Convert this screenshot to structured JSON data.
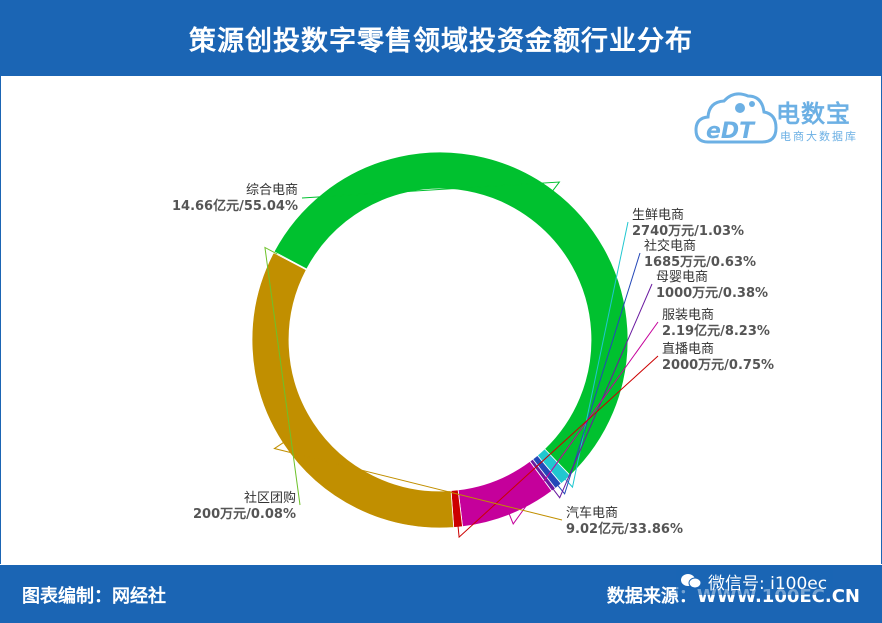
{
  "header": {
    "title": "策源创投数字零售领域投资金额行业分布"
  },
  "logo": {
    "name": "电数宝",
    "mark": "eDT",
    "subtitle": "电商大数据库"
  },
  "footer": {
    "left": "图表编制：网经社",
    "right": "数据来源：WWW.100EC.CN"
  },
  "watermark": {
    "text": "微信号: i100ec"
  },
  "colors": {
    "header_bg": "#1b65b4",
    "logo": "#6cb0e4"
  },
  "chart_data": {
    "type": "pie",
    "style": "donut",
    "title": "策源创投数字零售领域投资金额行业分布",
    "unit": "%",
    "slices": [
      {
        "name": "综合电商",
        "value_text": "14.66亿元",
        "pct": 55.04,
        "pct_text": "55.04%",
        "color": "#00c12f"
      },
      {
        "name": "生鲜电商",
        "value_text": "2740万元",
        "pct": 1.03,
        "pct_text": "1.03%",
        "color": "#21c7d0"
      },
      {
        "name": "社交电商",
        "value_text": "1685万元",
        "pct": 0.63,
        "pct_text": "0.63%",
        "color": "#2448b8"
      },
      {
        "name": "母婴电商",
        "value_text": "1000万元",
        "pct": 0.38,
        "pct_text": "0.38%",
        "color": "#6a1aa0"
      },
      {
        "name": "服装电商",
        "value_text": "2.19亿元",
        "pct": 8.23,
        "pct_text": "8.23%",
        "color": "#c5009b"
      },
      {
        "name": "直播电商",
        "value_text": "2000万元",
        "pct": 0.75,
        "pct_text": "0.75%",
        "color": "#cc0000"
      },
      {
        "name": "汽车电商",
        "value_text": "9.02亿元",
        "pct": 33.86,
        "pct_text": "33.86%",
        "color": "#c18f00"
      },
      {
        "name": "社区团购",
        "value_text": "200万元",
        "pct": 0.08,
        "pct_text": "0.08%",
        "color": "#6dc22a"
      }
    ]
  }
}
